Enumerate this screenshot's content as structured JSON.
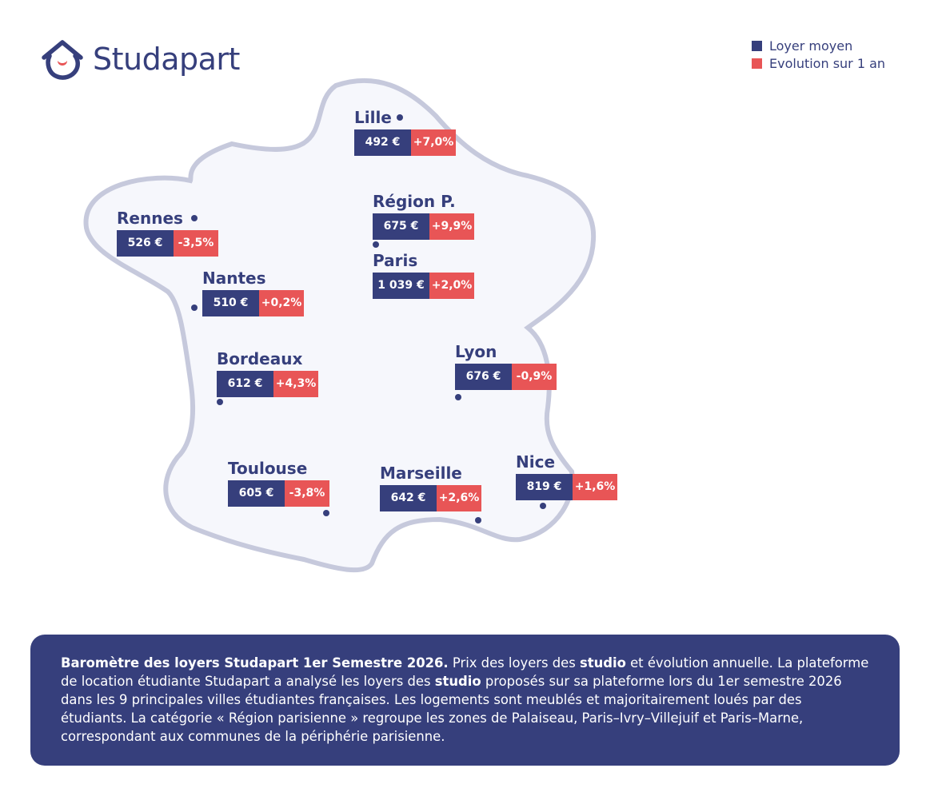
{
  "brand": {
    "name": "Studapart"
  },
  "legend": [
    {
      "label": "Loyer moyen",
      "color": "#363f7c"
    },
    {
      "label": "Evolution sur 1 an",
      "color": "#e85556"
    }
  ],
  "colors": {
    "primary": "#363f7c",
    "accent": "#e85556",
    "map_fill": "#f6f7fc",
    "map_stroke": "#c6c9dc"
  },
  "cities": [
    {
      "name": "Lille",
      "rent": "492 €",
      "evolution": "+7,0%"
    },
    {
      "name": "Rennes",
      "rent": "526 €",
      "evolution": "-3,5%"
    },
    {
      "name": "Région P.",
      "rent": "675 €",
      "evolution": "+9,9%"
    },
    {
      "name": "Paris",
      "rent": "1 039 €",
      "evolution": "+2,0%"
    },
    {
      "name": "Nantes",
      "rent": "510 €",
      "evolution": "+0,2%"
    },
    {
      "name": "Bordeaux",
      "rent": "612 €",
      "evolution": "+4,3%"
    },
    {
      "name": "Lyon",
      "rent": "676 €",
      "evolution": "-0,9%"
    },
    {
      "name": "Toulouse",
      "rent": "605 €",
      "evolution": "-3,8%"
    },
    {
      "name": "Marseille",
      "rent": "642 €",
      "evolution": "+2,6%"
    },
    {
      "name": "Nice",
      "rent": "819 €",
      "evolution": "+1,6%"
    }
  ],
  "info": {
    "title": "Baromètre des loyers Studapart 1er Semestre 2026.",
    "t1": " Prix des loyers des ",
    "b1": "studio",
    "t2": " et évolution annuelle. La plateforme de location étudiante Studapart a analysé les loyers des ",
    "b2": "studio",
    "t3": " proposés sur sa plateforme lors du 1er semestre 2026 dans les 9 principales villes étudiantes françaises. Les logements sont meublés et majoritairement loués par des étudiants. La catégorie « Région parisienne » regroupe les zones de Palaiseau, Paris–Ivry–Villejuif et Paris–Marne, correspondant aux communes de la périphérie parisienne."
  }
}
